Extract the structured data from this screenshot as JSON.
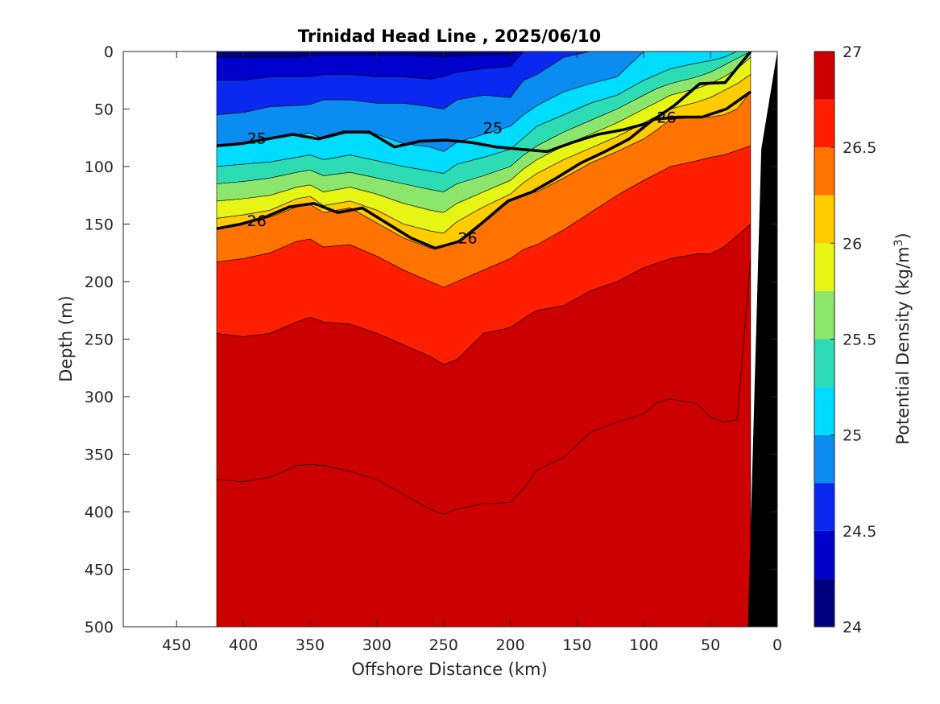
{
  "chart_data": {
    "type": "contourf",
    "title": "Trinidad Head Line , 2025/06/10",
    "xlabel": "Offshore Distance (km)",
    "ylabel": "Depth (m)",
    "xlim": [
      490,
      0
    ],
    "ylim": [
      0,
      500
    ],
    "x_reversed": true,
    "y_reversed": true,
    "xticks": [
      "450",
      "400",
      "350",
      "300",
      "250",
      "200",
      "150",
      "100",
      "50",
      "0"
    ],
    "yticks": [
      "0",
      "50",
      "100",
      "150",
      "200",
      "250",
      "300",
      "350",
      "400",
      "450",
      "500"
    ],
    "colorbar": {
      "label": "Potential Density (kg/m",
      "label_superscript": "3",
      "label_close": ")",
      "range": [
        24,
        27
      ],
      "ticks": [
        "24",
        "24.5",
        "25",
        "25.5",
        "26",
        "26.5",
        "27"
      ],
      "levels": [
        24,
        24.25,
        24.5,
        24.75,
        25,
        25.25,
        25.5,
        25.75,
        26,
        26.25,
        26.5,
        26.75,
        27
      ],
      "colors": [
        "#00007f",
        "#0000cc",
        "#0a28f0",
        "#0a8cf0",
        "#00dcff",
        "#2ddcb4",
        "#8ce66e",
        "#e6f514",
        "#ffcc00",
        "#ff7300",
        "#ff1e00",
        "#cc0000"
      ]
    },
    "data_extent_km": [
      420,
      20
    ],
    "contour_lines": [
      {
        "level": 25,
        "label": "25",
        "depths_m": [
          82,
          80,
          76,
          72,
          76,
          70,
          70,
          83,
          78,
          77,
          79,
          83,
          85,
          87,
          79,
          72,
          68,
          62,
          47,
          28,
          27,
          0
        ]
      },
      {
        "level": 26,
        "label": "26",
        "depths_m": [
          154,
          150,
          144,
          135,
          132,
          140,
          136,
          149,
          162,
          171,
          165,
          148,
          130,
          122,
          110,
          97,
          87,
          76,
          59,
          57,
          57,
          50,
          35
        ]
      }
    ],
    "contour_label_positions": [
      {
        "text": "25",
        "x": 390,
        "y": 75
      },
      {
        "text": "25",
        "x": 213,
        "y": 66
      },
      {
        "text": "26",
        "x": 390,
        "y": 147
      },
      {
        "text": "26",
        "x": 232,
        "y": 162
      },
      {
        "text": "26",
        "x": 83,
        "y": 57
      }
    ],
    "boundaries": {
      "x_km": [
        420,
        400,
        380,
        360,
        350,
        340,
        320,
        300,
        280,
        260,
        250,
        240,
        220,
        200,
        190,
        180,
        160,
        140,
        120,
        100,
        90,
        80,
        60,
        50,
        40,
        30,
        20
      ],
      "depths_m": [
        [
          5,
          5,
          5,
          5,
          4,
          3,
          3,
          3,
          3,
          4,
          5,
          4,
          3,
          2,
          0,
          0,
          0,
          0,
          0,
          0,
          0,
          0,
          0,
          0,
          0,
          0,
          0
        ],
        [
          25,
          25,
          22,
          22,
          22,
          20,
          20,
          22,
          22,
          24,
          22,
          18,
          15,
          13,
          0,
          0,
          0,
          0,
          0,
          0,
          0,
          0,
          0,
          0,
          0,
          0,
          0
        ],
        [
          55,
          53,
          48,
          47,
          46,
          42,
          42,
          45,
          45,
          48,
          50,
          42,
          38,
          40,
          25,
          20,
          5,
          0,
          0,
          0,
          0,
          0,
          3,
          5,
          0,
          0,
          0
        ],
        [
          82,
          80,
          76,
          72,
          71,
          76,
          70,
          72,
          80,
          83,
          87,
          79,
          72,
          65,
          55,
          47,
          35,
          28,
          22,
          0,
          0,
          0,
          0,
          0,
          0,
          0,
          0
        ],
        [
          100,
          98,
          96,
          92,
          90,
          94,
          90,
          95,
          100,
          104,
          106,
          98,
          92,
          85,
          75,
          65,
          55,
          45,
          38,
          25,
          20,
          15,
          10,
          8,
          5,
          0,
          0
        ],
        [
          115,
          113,
          110,
          105,
          103,
          108,
          105,
          110,
          115,
          120,
          122,
          115,
          108,
          100,
          90,
          82,
          70,
          60,
          50,
          38,
          32,
          28,
          22,
          18,
          12,
          6,
          0
        ],
        [
          130,
          128,
          125,
          118,
          116,
          122,
          118,
          124,
          132,
          138,
          140,
          132,
          122,
          112,
          102,
          94,
          82,
          72,
          62,
          50,
          44,
          38,
          32,
          28,
          22,
          15,
          5
        ],
        [
          145,
          142,
          138,
          128,
          126,
          134,
          130,
          138,
          150,
          156,
          158,
          148,
          135,
          124,
          114,
          106,
          94,
          84,
          74,
          62,
          56,
          50,
          44,
          40,
          34,
          28,
          20
        ],
        [
          154,
          150,
          144,
          135,
          133,
          140,
          136,
          149,
          162,
          171,
          170,
          165,
          148,
          130,
          124,
          122,
          110,
          97,
          87,
          76,
          68,
          59,
          57,
          57,
          55,
          50,
          35
        ],
        [
          183,
          180,
          175,
          165,
          163,
          170,
          168,
          178,
          190,
          200,
          205,
          200,
          190,
          180,
          172,
          168,
          155,
          140,
          125,
          112,
          106,
          100,
          95,
          92,
          90,
          86,
          82
        ],
        [
          245,
          248,
          245,
          235,
          231,
          235,
          237,
          245,
          255,
          265,
          272,
          268,
          245,
          240,
          232,
          225,
          221,
          208,
          200,
          188,
          184,
          180,
          176,
          176,
          170,
          160,
          150
        ],
        [
          372,
          374,
          370,
          360,
          359,
          360,
          365,
          372,
          385,
          398,
          402,
          398,
          393,
          392,
          380,
          364,
          353,
          331,
          322,
          315,
          305,
          302,
          306,
          318,
          322,
          320,
          180
        ]
      ]
    },
    "topography": {
      "fill": "#000000",
      "x_km": [
        22,
        12,
        0,
        0
      ],
      "top_depths_m": [
        500,
        85,
        0,
        500
      ]
    },
    "grid": false
  }
}
